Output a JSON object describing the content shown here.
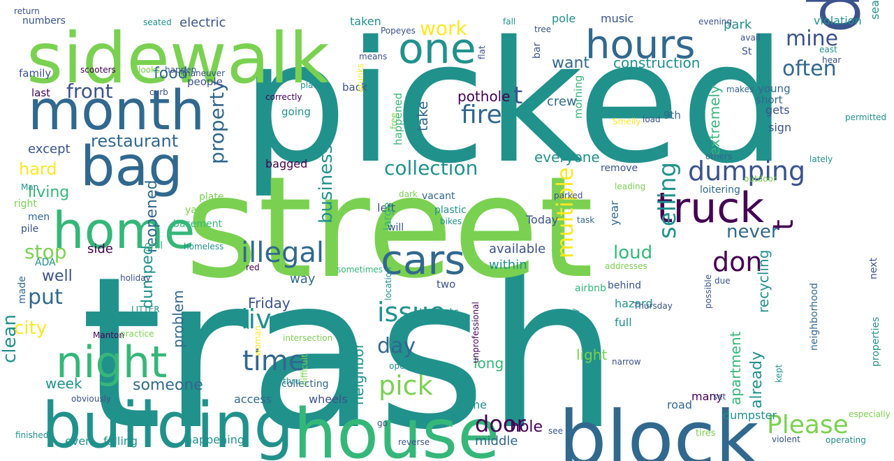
{
  "word_cloud": {
    "palette": {
      "purple": "#440154",
      "indigo": "#3b528b",
      "blue": "#31688e",
      "teal": "#21918c",
      "green": "#35b779",
      "lime": "#7ad151",
      "yellow": "#fde725"
    },
    "words": [
      {
        "text": "trash",
        "color": "#21918c"
      },
      {
        "text": "picked",
        "color": "#21918c"
      },
      {
        "text": "street",
        "color": "#7ad151"
      },
      {
        "text": "sidewalk",
        "color": "#7ad151"
      },
      {
        "text": "dangerous",
        "color": "#3b528b"
      },
      {
        "text": "block",
        "color": "#31688e"
      },
      {
        "text": "house",
        "color": "#35b779"
      },
      {
        "text": "building",
        "color": "#21918c"
      },
      {
        "text": "month",
        "color": "#31688e"
      },
      {
        "text": "home",
        "color": "#35b779"
      },
      {
        "text": "bag",
        "color": "#31688e"
      },
      {
        "text": "night",
        "color": "#35b779"
      },
      {
        "text": "truck",
        "color": "#440154"
      },
      {
        "text": "cars",
        "color": "#31688e"
      },
      {
        "text": "hours",
        "color": "#31688e"
      },
      {
        "text": "one",
        "color": "#21918c"
      },
      {
        "text": "illegal",
        "color": "#31688e"
      },
      {
        "text": "dumping",
        "color": "#3b528b"
      },
      {
        "text": "selling",
        "color": "#21918c"
      },
      {
        "text": "don",
        "color": "#440154"
      },
      {
        "text": "t",
        "color": "#440154"
      },
      {
        "text": "t",
        "color": "#3b528b"
      },
      {
        "text": "Please",
        "color": "#7ad151"
      },
      {
        "text": "door",
        "color": "#440154"
      },
      {
        "text": "issue",
        "color": "#21918c"
      },
      {
        "text": "live",
        "color": "#21918c"
      },
      {
        "text": "time",
        "color": "#31688e"
      },
      {
        "text": "pick",
        "color": "#7ad151"
      },
      {
        "text": "day",
        "color": "#31688e"
      },
      {
        "text": "multiple",
        "color": "#fde725"
      },
      {
        "text": "fire",
        "color": "#31688e"
      },
      {
        "text": "mine",
        "color": "#3b528b"
      },
      {
        "text": "often",
        "color": "#31688e"
      },
      {
        "text": "front",
        "color": "#3b528b"
      },
      {
        "text": "restaurant",
        "color": "#31688e"
      },
      {
        "text": "property",
        "color": "#31688e"
      },
      {
        "text": "work",
        "color": "#fde725"
      },
      {
        "text": "put",
        "color": "#31688e"
      },
      {
        "text": "stop",
        "color": "#7ad151"
      },
      {
        "text": "city",
        "color": "#fde725"
      },
      {
        "text": "clean",
        "color": "#21918c"
      },
      {
        "text": "never",
        "color": "#31688e"
      },
      {
        "text": "loud",
        "color": "#35b779"
      },
      {
        "text": "collection",
        "color": "#21918c"
      },
      {
        "text": "business",
        "color": "#21918c"
      },
      {
        "text": "hard",
        "color": "#fde725"
      },
      {
        "text": "living",
        "color": "#35b779"
      },
      {
        "text": "food",
        "color": "#31688e"
      },
      {
        "text": "reopened",
        "color": "#31688e"
      },
      {
        "text": "dumped",
        "color": "#21918c"
      },
      {
        "text": "well",
        "color": "#3b528b"
      },
      {
        "text": "problem",
        "color": "#31688e"
      },
      {
        "text": "someone",
        "color": "#31688e"
      },
      {
        "text": "week",
        "color": "#21918c"
      },
      {
        "text": "neighbor",
        "color": "#21918c"
      },
      {
        "text": "recycling",
        "color": "#21918c"
      },
      {
        "text": "already",
        "color": "#21918c"
      },
      {
        "text": "apartment",
        "color": "#35b779"
      },
      {
        "text": "want",
        "color": "#31688e"
      },
      {
        "text": "construction",
        "color": "#21918c"
      },
      {
        "text": "everyone",
        "color": "#21918c"
      },
      {
        "text": "extremely",
        "color": "#35b779"
      },
      {
        "text": "take",
        "color": "#31688e"
      },
      {
        "text": "pothole",
        "color": "#440154"
      },
      {
        "text": "Friday",
        "color": "#3b528b"
      },
      {
        "text": "hole",
        "color": "#440154"
      },
      {
        "text": "long",
        "color": "#35b779"
      },
      {
        "text": "light",
        "color": "#7ad151"
      },
      {
        "text": "available",
        "color": "#3b528b"
      },
      {
        "text": "within",
        "color": "#21918c"
      },
      {
        "text": "middle",
        "color": "#31688e"
      },
      {
        "text": "electric",
        "color": "#3b528b"
      },
      {
        "text": "except",
        "color": "#3b528b"
      },
      {
        "text": "side",
        "color": "#440154"
      },
      {
        "text": "way",
        "color": "#31688e"
      },
      {
        "text": "park",
        "color": "#21918c"
      },
      {
        "text": "crew",
        "color": "#31688e"
      },
      {
        "text": "sign",
        "color": "#3b528b"
      },
      {
        "text": "gets",
        "color": "#3b528b"
      },
      {
        "text": "seating",
        "color": "#21918c"
      },
      {
        "text": "road",
        "color": "#31688e"
      },
      {
        "text": "dumpster",
        "color": "#21918c"
      },
      {
        "text": "even",
        "color": "#21918c"
      },
      {
        "text": "falling",
        "color": "#21918c"
      },
      {
        "text": "happening",
        "color": "#21918c"
      },
      {
        "text": "access",
        "color": "#31688e"
      },
      {
        "text": "wheels",
        "color": "#3b528b"
      },
      {
        "text": "come",
        "color": "#21918c"
      },
      {
        "text": "taken",
        "color": "#21918c"
      },
      {
        "text": "left",
        "color": "#3b528b"
      },
      {
        "text": "bagged",
        "color": "#440154"
      },
      {
        "text": "year",
        "color": "#31688e"
      },
      {
        "text": "hazard",
        "color": "#21918c"
      },
      {
        "text": "full",
        "color": "#21918c"
      },
      {
        "text": "many",
        "color": "#440154"
      },
      {
        "text": "violation",
        "color": "#21918c"
      },
      {
        "text": "morning",
        "color": "#35b779"
      },
      {
        "text": "happened",
        "color": "#35b779"
      },
      {
        "text": "large",
        "color": "#35b779"
      },
      {
        "text": "loitering",
        "color": "#31688e"
      },
      {
        "text": "Today",
        "color": "#3b528b"
      },
      {
        "text": "9th",
        "color": "#31688e"
      },
      {
        "text": "young",
        "color": "#31688e"
      },
      {
        "text": "short",
        "color": "#31688e"
      },
      {
        "text": "family",
        "color": "#3b528b"
      },
      {
        "text": "last",
        "color": "#440154"
      },
      {
        "text": "people",
        "color": "#3b528b"
      },
      {
        "text": "going",
        "color": "#21918c"
      },
      {
        "text": "back",
        "color": "#3b528b"
      },
      {
        "text": "Man",
        "color": "#21918c"
      },
      {
        "text": "right",
        "color": "#7ad151"
      },
      {
        "text": "men",
        "color": "#31688e"
      },
      {
        "text": "pile",
        "color": "#3b528b"
      },
      {
        "text": "ADA",
        "color": "#21918c"
      },
      {
        "text": "made",
        "color": "#31688e"
      },
      {
        "text": "plate",
        "color": "#7ad151"
      },
      {
        "text": "yard",
        "color": "#7ad151"
      },
      {
        "text": "basement",
        "color": "#35b779"
      },
      {
        "text": "vacant",
        "color": "#31688e"
      },
      {
        "text": "plastic",
        "color": "#21918c"
      },
      {
        "text": "will",
        "color": "#3b528b"
      },
      {
        "text": "two",
        "color": "#3b528b"
      },
      {
        "text": "tenants",
        "color": "#21918c"
      },
      {
        "text": "remove",
        "color": "#3b528b"
      },
      {
        "text": "behind",
        "color": "#3b528b"
      },
      {
        "text": "next",
        "color": "#3b528b"
      },
      {
        "text": "neighborhood",
        "color": "#31688e"
      },
      {
        "text": "properties",
        "color": "#21918c"
      },
      {
        "text": "airbnb",
        "color": "#35b779"
      },
      {
        "text": "bar",
        "color": "#3b528b"
      },
      {
        "text": "grill",
        "color": "#35b779"
      },
      {
        "text": "red",
        "color": "#440154"
      },
      {
        "text": "sometimes",
        "color": "#35b779"
      },
      {
        "text": "location",
        "color": "#21918c"
      },
      {
        "text": "collecting",
        "color": "#31688e"
      },
      {
        "text": "open",
        "color": "#21918c"
      },
      {
        "text": "go",
        "color": "#3b528b"
      },
      {
        "text": "obviously",
        "color": "#3b528b"
      },
      {
        "text": "finished",
        "color": "#21918c"
      },
      {
        "text": "reverse",
        "color": "#3b528b"
      },
      {
        "text": "violent",
        "color": "#3b528b"
      },
      {
        "text": "operating",
        "color": "#21918c"
      },
      {
        "text": "especially",
        "color": "#7ad151"
      },
      {
        "text": "tires",
        "color": "#7ad151"
      },
      {
        "text": "see",
        "color": "#3b528b"
      },
      {
        "text": "set",
        "color": "#3b528b"
      },
      {
        "text": "kept",
        "color": "#21918c"
      },
      {
        "text": "busy",
        "color": "#21918c"
      },
      {
        "text": "Thursday",
        "color": "#3b528b"
      },
      {
        "text": "narrow",
        "color": "#3b528b"
      },
      {
        "text": "woman",
        "color": "#fde725"
      },
      {
        "text": "difficult",
        "color": "#7ad151"
      },
      {
        "text": "intersection",
        "color": "#7ad151"
      },
      {
        "text": "thru",
        "color": "#21918c"
      },
      {
        "text": "Manton",
        "color": "#440154"
      },
      {
        "text": "holiday",
        "color": "#3b528b"
      },
      {
        "text": "LITTER",
        "color": "#21918c"
      },
      {
        "text": "practice",
        "color": "#7ad151"
      },
      {
        "text": "homeless",
        "color": "#21918c"
      },
      {
        "text": "hit",
        "color": "#7ad151"
      },
      {
        "text": "possible",
        "color": "#3b528b"
      },
      {
        "text": "due",
        "color": "#3b528b"
      },
      {
        "text": "addresses",
        "color": "#7ad151"
      },
      {
        "text": "unprofessional",
        "color": "#440154"
      },
      {
        "text": "dark",
        "color": "#7ad151"
      },
      {
        "text": "parked",
        "color": "#3b528b"
      },
      {
        "text": "bikes",
        "color": "#21918c"
      },
      {
        "text": "task",
        "color": "#31688e"
      },
      {
        "text": "leading",
        "color": "#7ad151"
      },
      {
        "text": "outdoor",
        "color": "#7ad151"
      },
      {
        "text": "lately",
        "color": "#21918c"
      },
      {
        "text": "permitted",
        "color": "#21918c"
      },
      {
        "text": "others",
        "color": "#31688e"
      },
      {
        "text": "makes",
        "color": "#31688e"
      },
      {
        "text": "load",
        "color": "#3b528b"
      },
      {
        "text": "Smelly",
        "color": "#fde725"
      },
      {
        "text": "drunks",
        "color": "#fde725"
      },
      {
        "text": "free",
        "color": "#7ad151"
      },
      {
        "text": "correctly",
        "color": "#440154"
      },
      {
        "text": "placed",
        "color": "#21918c"
      },
      {
        "text": "curb",
        "color": "#3b528b"
      },
      {
        "text": "maneuver",
        "color": "#3b528b"
      },
      {
        "text": "scooters",
        "color": "#440154"
      },
      {
        "text": "looks",
        "color": "#7ad151"
      },
      {
        "text": "happen",
        "color": "#3b528b"
      },
      {
        "text": "means",
        "color": "#3b528b"
      },
      {
        "text": "Popeyes",
        "color": "#3b528b"
      },
      {
        "text": "seated",
        "color": "#21918c"
      },
      {
        "text": "numbers",
        "color": "#3b528b"
      },
      {
        "text": "fall",
        "color": "#21918c"
      },
      {
        "text": "flat",
        "color": "#3b528b"
      },
      {
        "text": "pole",
        "color": "#21918c"
      },
      {
        "text": "music",
        "color": "#3b528b"
      },
      {
        "text": "tree",
        "color": "#3b528b"
      },
      {
        "text": "evening",
        "color": "#3b528b"
      },
      {
        "text": "avail",
        "color": "#3b528b"
      },
      {
        "text": "St",
        "color": "#3b528b"
      },
      {
        "text": "east",
        "color": "#21918c"
      },
      {
        "text": "hear",
        "color": "#3b528b"
      },
      {
        "text": "return",
        "color": "#3b528b"
      }
    ]
  }
}
